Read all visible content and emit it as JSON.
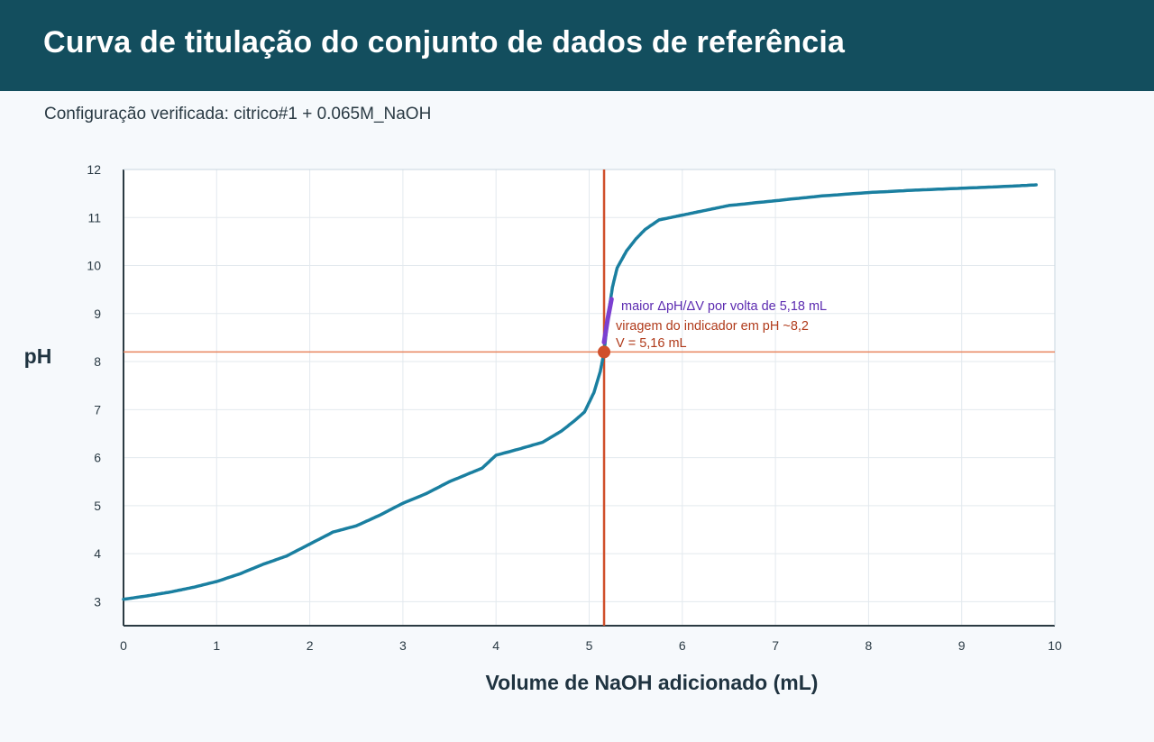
{
  "header": {
    "title": "Curva de titulação do conjunto de dados de referência"
  },
  "subtitle": "Configuração verificada: citrico#1 + 0.065M_NaOH",
  "colors": {
    "header_bg": "#134e5e",
    "curve": "#1a7fa0",
    "steep_segment": "#7b3fd0",
    "reference_lines": "#d0502c",
    "horizontal_reference": "#e8845e",
    "endpoint_text": "#b03a1a",
    "slope_text": "#5b2ab0"
  },
  "chart_data": {
    "type": "line",
    "xlabel": "Volume de NaOH adicionado (mL)",
    "ylabel": "pH",
    "xlim": [
      0,
      10
    ],
    "ylim": [
      2.5,
      12
    ],
    "x_ticks": [
      0,
      1,
      2,
      3,
      4,
      5,
      6,
      7,
      8,
      9,
      10
    ],
    "y_ticks": [
      3,
      4,
      5,
      6,
      7,
      8,
      9,
      10,
      11,
      12
    ],
    "grid": true,
    "series": [
      {
        "x": [
          0.0,
          0.25,
          0.5,
          0.75,
          1.0,
          1.25,
          1.5,
          1.75,
          2.0,
          2.25,
          2.5,
          2.75,
          3.0,
          3.25,
          3.5,
          3.75,
          3.85,
          4.0,
          4.25,
          4.5,
          4.7,
          4.85,
          4.95,
          5.05,
          5.12,
          5.16,
          5.2,
          5.25,
          5.3,
          5.4,
          5.5,
          5.6,
          5.75,
          6.0,
          6.25,
          6.5,
          7.0,
          7.5,
          8.0,
          8.5,
          9.0,
          9.5,
          9.8
        ],
        "y": [
          3.05,
          3.12,
          3.2,
          3.3,
          3.42,
          3.58,
          3.78,
          3.95,
          4.2,
          4.45,
          4.58,
          4.8,
          5.05,
          5.25,
          5.5,
          5.7,
          5.78,
          6.05,
          6.18,
          6.32,
          6.55,
          6.78,
          6.95,
          7.35,
          7.8,
          8.2,
          8.9,
          9.55,
          9.95,
          10.3,
          10.55,
          10.75,
          10.95,
          11.05,
          11.15,
          11.25,
          11.35,
          11.45,
          11.52,
          11.57,
          11.61,
          11.65,
          11.68
        ]
      }
    ],
    "steep_segment": {
      "x": [
        5.16,
        5.2,
        5.24
      ],
      "y": [
        8.4,
        8.9,
        9.3
      ]
    },
    "endpoint": {
      "x": 5.16,
      "y": 8.2
    },
    "annotations": {
      "slope": "maior ΔpH/ΔV por volta de 5,18 mL",
      "indicator": "viragem do indicador em pH ~8,2",
      "volume": "V = 5,16 mL"
    }
  }
}
